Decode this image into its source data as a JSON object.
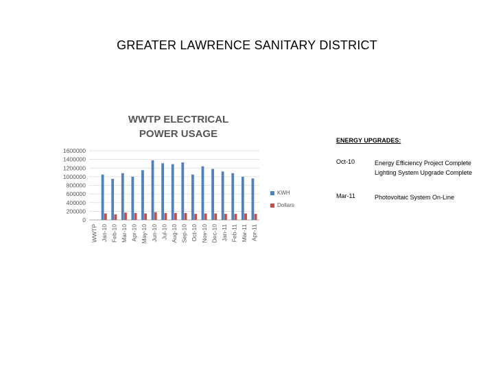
{
  "page": {
    "title": "GREATER LAWRENCE SANITARY DISTRICT"
  },
  "chart_data": {
    "type": "bar",
    "title_lines": [
      "WWTP ELECTRICAL",
      "POWER USAGE"
    ],
    "categories": [
      "WWTP",
      "Jan-10",
      "Feb-10",
      "Mar-10",
      "Apr-10",
      "May-10",
      "Jun-10",
      "Jul-10",
      "Aug-10",
      "Sep-10",
      "Oct-10",
      "Nov-10",
      "Dec-10",
      "Jan-11",
      "Feb-11",
      "Mar-11",
      "Apr-11"
    ],
    "series": [
      {
        "name": "KWH",
        "color": "#4F81BD",
        "values": [
          null,
          1050000,
          950000,
          1080000,
          1000000,
          1150000,
          1380000,
          1310000,
          1290000,
          1330000,
          1050000,
          1240000,
          1180000,
          1120000,
          1080000,
          1000000,
          960000
        ]
      },
      {
        "name": "Dollars",
        "color": "#C0504D",
        "values": [
          null,
          150000,
          130000,
          170000,
          160000,
          150000,
          180000,
          160000,
          160000,
          160000,
          140000,
          150000,
          150000,
          140000,
          140000,
          150000,
          140000
        ]
      }
    ],
    "ylim": [
      0,
      1600000
    ],
    "yticks": [
      "1600000",
      "1400000",
      "1200000",
      "1000000",
      "800000",
      "600000",
      "400000",
      "200000",
      "0"
    ],
    "grid": true,
    "legend": "right"
  },
  "upgrades": {
    "heading": "ENERGY UPGRADES:",
    "items": [
      {
        "date": "Oct-10",
        "lines": [
          "Energy Efficiency Project Complete",
          "Lighting System Upgrade Complete"
        ]
      },
      {
        "date": "Mar-11",
        "lines": [
          "Photovoltaic System On-Line"
        ]
      }
    ]
  }
}
